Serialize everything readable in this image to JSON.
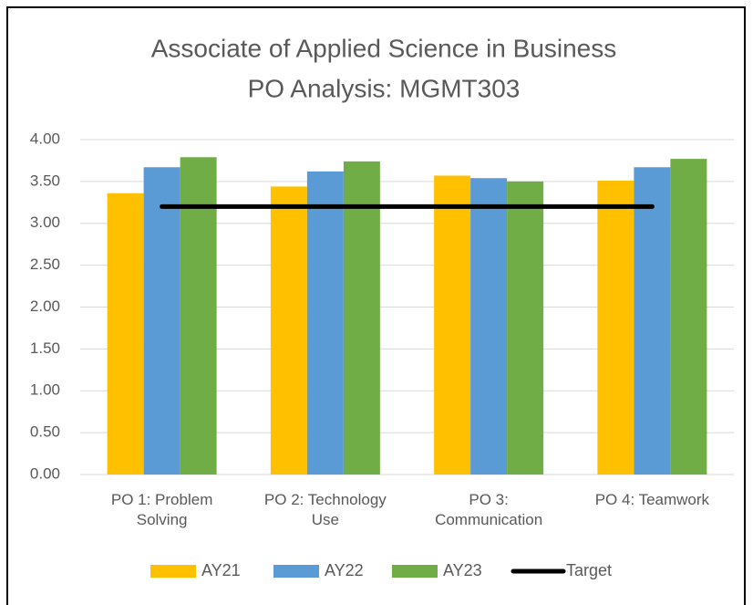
{
  "chart_data": {
    "type": "bar",
    "title": [
      "Associate of Applied Science in Business",
      "PO Analysis: MGMT303"
    ],
    "categories": [
      "PO 1: Problem Solving",
      "PO 2: Technology Use",
      "PO 3: Communication",
      "PO 4: Teamwork"
    ],
    "series": [
      {
        "name": "AY21",
        "color": "#ffc000",
        "values": [
          3.36,
          3.44,
          3.57,
          3.51
        ]
      },
      {
        "name": "AY22",
        "color": "#5b9bd5",
        "values": [
          3.67,
          3.62,
          3.54,
          3.67
        ]
      },
      {
        "name": "AY23",
        "color": "#70ad47",
        "values": [
          3.79,
          3.74,
          3.5,
          3.77
        ]
      },
      {
        "name": "Target",
        "color": "#000000",
        "type": "line",
        "values": [
          3.2,
          3.2,
          3.2,
          3.2
        ]
      }
    ],
    "ylim": [
      0,
      4
    ],
    "yticks": [
      {
        "value": 0,
        "label": "0.00"
      },
      {
        "value": 0.5,
        "label": "0.50"
      },
      {
        "value": 1,
        "label": "1.00"
      },
      {
        "value": 1.5,
        "label": "1.50"
      },
      {
        "value": 2,
        "label": "2.00"
      },
      {
        "value": 2.5,
        "label": "2.50"
      },
      {
        "value": 3,
        "label": "3.00"
      },
      {
        "value": 3.5,
        "label": "3.50"
      },
      {
        "value": 4,
        "label": "4.00"
      }
    ],
    "grid": true,
    "legend": "bottom"
  }
}
